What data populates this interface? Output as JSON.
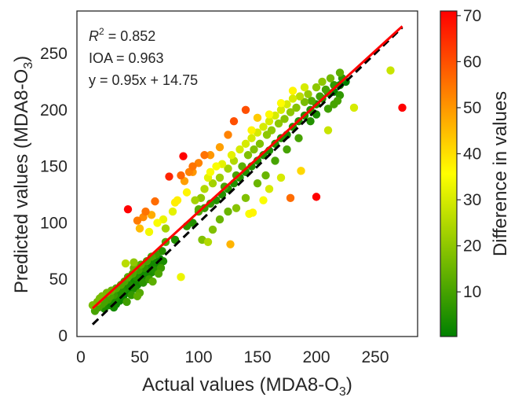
{
  "chart_data": {
    "type": "scatter",
    "xlabel": "Actual values (MDA8-O",
    "xlabel_sub": "3",
    "xlabel_close": ")",
    "ylabel": "Predicted values (MDA8-O",
    "ylabel_sub": "3",
    "ylabel_close": ")",
    "xlim": [
      0,
      285
    ],
    "ylim": [
      0,
      287
    ],
    "xticks": [
      0,
      50,
      100,
      150,
      200,
      250
    ],
    "yticks": [
      0,
      50,
      100,
      150,
      200,
      250
    ],
    "xtick_labels": [
      "0",
      "50",
      "100",
      "150",
      "200",
      "250"
    ],
    "ytick_labels": [
      "0",
      "50",
      "100",
      "150",
      "200",
      "250"
    ],
    "grid": false,
    "annotations": {
      "r2_label": "R",
      "r2_sup": "2",
      "r2_value": " = 0.852",
      "ioa": "IOA = 0.963",
      "equation": "y = 0.95x + 14.75"
    },
    "regression_line": {
      "slope": 0.95,
      "intercept": 14.75,
      "x_range": [
        10,
        273
      ],
      "color": "#ff0000"
    },
    "identity_line": {
      "slope": 1,
      "intercept": 0,
      "x_range": [
        10,
        273
      ],
      "color": "#000000",
      "style": "dashed"
    },
    "colorbar": {
      "label": "Difference in values",
      "range": [
        0.3,
        71
      ],
      "ticks": [
        10,
        20,
        30,
        40,
        50,
        60,
        70
      ],
      "tick_labels": [
        "10",
        "20",
        "30",
        "40",
        "50",
        "60",
        "70"
      ],
      "colormap": [
        "#008000",
        "#ffff00",
        "#ff0000"
      ]
    },
    "points": [
      [
        10,
        27
      ],
      [
        12,
        22
      ],
      [
        14,
        30
      ],
      [
        15,
        25
      ],
      [
        16,
        33
      ],
      [
        18,
        28
      ],
      [
        18,
        35
      ],
      [
        20,
        30
      ],
      [
        20,
        24
      ],
      [
        22,
        38
      ],
      [
        23,
        32
      ],
      [
        24,
        27
      ],
      [
        25,
        35
      ],
      [
        26,
        40
      ],
      [
        27,
        30
      ],
      [
        28,
        36
      ],
      [
        29,
        33
      ],
      [
        30,
        28
      ],
      [
        30,
        42
      ],
      [
        32,
        37
      ],
      [
        33,
        31
      ],
      [
        34,
        45
      ],
      [
        35,
        40
      ],
      [
        36,
        35
      ],
      [
        37,
        48
      ],
      [
        38,
        42
      ],
      [
        39,
        30
      ],
      [
        40,
        38
      ],
      [
        40,
        52
      ],
      [
        41,
        45
      ],
      [
        42,
        40
      ],
      [
        43,
        36
      ],
      [
        44,
        55
      ],
      [
        45,
        48
      ],
      [
        45,
        60
      ],
      [
        46,
        42
      ],
      [
        47,
        52
      ],
      [
        48,
        45
      ],
      [
        49,
        58
      ],
      [
        50,
        50
      ],
      [
        50,
        38
      ],
      [
        51,
        63
      ],
      [
        52,
        55
      ],
      [
        53,
        47
      ],
      [
        54,
        60
      ],
      [
        55,
        52
      ],
      [
        56,
        66
      ],
      [
        57,
        58
      ],
      [
        58,
        50
      ],
      [
        59,
        62
      ],
      [
        60,
        56
      ],
      [
        60,
        70
      ],
      [
        61,
        48
      ],
      [
        62,
        65
      ],
      [
        63,
        58
      ],
      [
        64,
        72
      ],
      [
        65,
        62
      ],
      [
        66,
        55
      ],
      [
        67,
        68
      ],
      [
        68,
        60
      ],
      [
        69,
        75
      ],
      [
        70,
        66
      ],
      [
        38,
        64
      ],
      [
        45,
        65
      ],
      [
        28,
        25
      ],
      [
        35,
        33
      ],
      [
        48,
        35
      ],
      [
        40,
        112
      ],
      [
        87,
        159
      ],
      [
        75,
        141
      ],
      [
        63,
        119
      ],
      [
        60,
        107
      ],
      [
        55,
        110
      ],
      [
        53,
        105
      ],
      [
        48,
        102
      ],
      [
        50,
        95
      ],
      [
        58,
        92
      ],
      [
        65,
        100
      ],
      [
        70,
        103
      ],
      [
        72,
        95
      ],
      [
        78,
        110
      ],
      [
        82,
        120
      ],
      [
        88,
        137
      ],
      [
        92,
        145
      ],
      [
        95,
        150
      ],
      [
        85,
        142
      ],
      [
        80,
        118
      ],
      [
        90,
        127
      ],
      [
        97,
        120
      ],
      [
        102,
        122
      ],
      [
        100,
        110
      ],
      [
        105,
        130
      ],
      [
        108,
        140
      ],
      [
        110,
        145
      ],
      [
        112,
        135
      ],
      [
        115,
        150
      ],
      [
        118,
        140
      ],
      [
        120,
        152
      ],
      [
        122,
        132
      ],
      [
        125,
        148
      ],
      [
        128,
        160
      ],
      [
        130,
        155
      ],
      [
        132,
        142
      ],
      [
        135,
        165
      ],
      [
        137,
        150
      ],
      [
        140,
        170
      ],
      [
        142,
        160
      ],
      [
        145,
        175
      ],
      [
        147,
        165
      ],
      [
        150,
        180
      ],
      [
        152,
        170
      ],
      [
        155,
        185
      ],
      [
        158,
        178
      ],
      [
        160,
        190
      ],
      [
        162,
        182
      ],
      [
        165,
        195
      ],
      [
        168,
        188
      ],
      [
        170,
        200
      ],
      [
        173,
        192
      ],
      [
        175,
        205
      ],
      [
        178,
        198
      ],
      [
        180,
        210
      ],
      [
        183,
        202
      ],
      [
        186,
        212
      ],
      [
        190,
        207
      ],
      [
        193,
        214
      ],
      [
        196,
        208
      ],
      [
        200,
        220
      ],
      [
        203,
        212
      ],
      [
        205,
        225
      ],
      [
        208,
        218
      ],
      [
        212,
        228
      ],
      [
        215,
        222
      ],
      [
        220,
        233
      ],
      [
        222,
        228
      ],
      [
        225,
        225
      ],
      [
        140,
        200
      ],
      [
        125,
        178
      ],
      [
        130,
        190
      ],
      [
        110,
        160
      ],
      [
        118,
        167
      ],
      [
        100,
        153
      ],
      [
        105,
        160
      ],
      [
        95,
        145
      ],
      [
        160,
        196
      ],
      [
        150,
        193
      ],
      [
        145,
        182
      ],
      [
        170,
        206
      ],
      [
        180,
        217
      ],
      [
        190,
        220
      ],
      [
        72,
        83
      ],
      [
        80,
        85
      ],
      [
        90,
        97
      ],
      [
        95,
        100
      ],
      [
        100,
        112
      ],
      [
        105,
        113
      ],
      [
        110,
        117
      ],
      [
        115,
        120
      ],
      [
        120,
        125
      ],
      [
        125,
        130
      ],
      [
        130,
        135
      ],
      [
        135,
        140
      ],
      [
        140,
        145
      ],
      [
        145,
        150
      ],
      [
        150,
        155
      ],
      [
        155,
        160
      ],
      [
        160,
        164
      ],
      [
        165,
        170
      ],
      [
        170,
        175
      ],
      [
        175,
        178
      ],
      [
        180,
        185
      ],
      [
        185,
        190
      ],
      [
        190,
        195
      ],
      [
        195,
        200
      ],
      [
        200,
        205
      ],
      [
        205,
        210
      ],
      [
        210,
        215
      ],
      [
        215,
        216
      ],
      [
        220,
        222
      ],
      [
        112,
        94
      ],
      [
        118,
        103
      ],
      [
        125,
        110
      ],
      [
        132,
        113
      ],
      [
        140,
        122
      ],
      [
        150,
        135
      ],
      [
        157,
        142
      ],
      [
        165,
        155
      ],
      [
        175,
        165
      ],
      [
        185,
        175
      ],
      [
        195,
        190
      ],
      [
        200,
        196
      ],
      [
        210,
        201
      ],
      [
        215,
        205
      ],
      [
        218,
        208
      ],
      [
        220,
        213
      ],
      [
        103,
        85
      ],
      [
        108,
        83
      ],
      [
        85,
        52
      ],
      [
        127,
        81
      ],
      [
        187,
        146
      ],
      [
        200,
        123
      ],
      [
        210,
        182
      ],
      [
        232,
        202
      ],
      [
        263,
        235
      ],
      [
        273,
        202
      ],
      [
        160,
        130
      ],
      [
        170,
        140
      ],
      [
        178,
        122
      ],
      [
        146,
        109
      ],
      [
        143,
        108
      ],
      [
        155,
        120
      ]
    ]
  }
}
